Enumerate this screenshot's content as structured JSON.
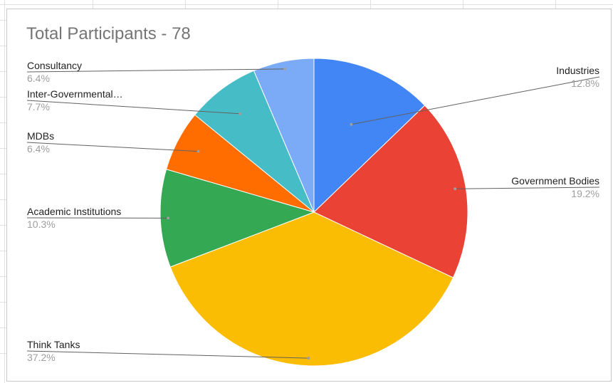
{
  "chart_data": {
    "type": "pie",
    "title": "Total Participants - 78",
    "start_angle_deg": 0,
    "direction": "clockwise",
    "legend": "none",
    "slices": [
      {
        "label": "Industries",
        "pct_label": "12.8%",
        "value": 12.8,
        "color": "#4285F4",
        "side": "right"
      },
      {
        "label": "Government Bodies",
        "pct_label": "19.2%",
        "value": 19.2,
        "color": "#EA4335",
        "side": "right"
      },
      {
        "label": "Think Tanks",
        "pct_label": "37.2%",
        "value": 37.2,
        "color": "#FBBC04",
        "side": "left"
      },
      {
        "label": "Academic Institutions",
        "pct_label": "10.3%",
        "value": 10.3,
        "color": "#34A853",
        "side": "left"
      },
      {
        "label": "MDBs",
        "pct_label": "6.4%",
        "value": 6.4,
        "color": "#FF6D01",
        "side": "left"
      },
      {
        "label": "Inter-Governmental…",
        "pct_label": "7.7%",
        "value": 7.7,
        "color": "#46BDC6",
        "side": "left"
      },
      {
        "label": "Consultancy",
        "pct_label": "6.4%",
        "value": 6.4,
        "color": "#7BAAF7",
        "side": "left"
      }
    ]
  }
}
